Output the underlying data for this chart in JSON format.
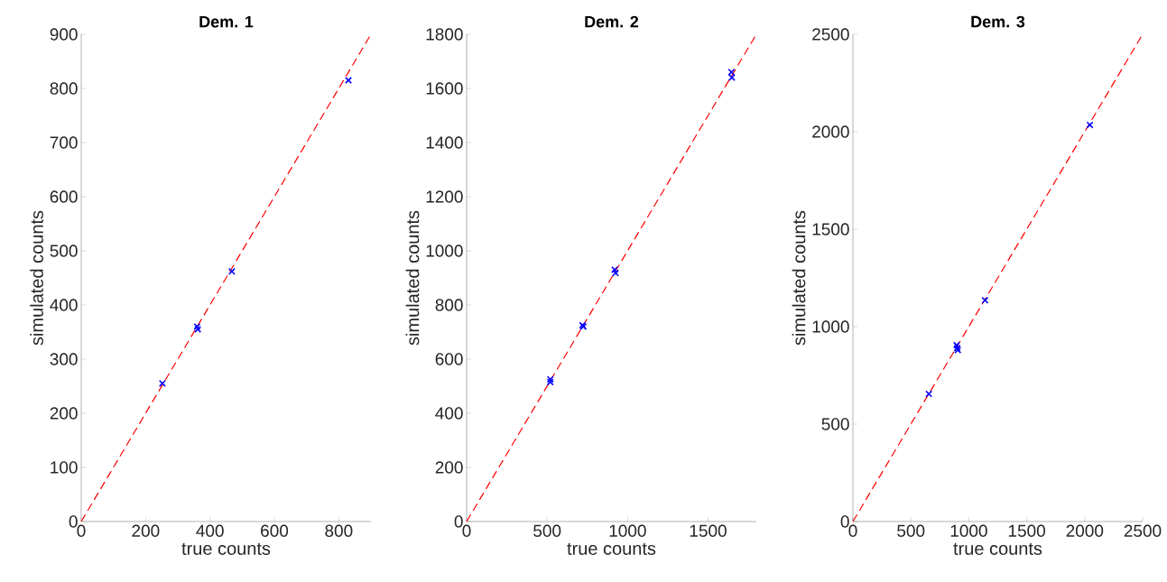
{
  "chart_data": [
    {
      "type": "scatter",
      "title": "Dem. 1",
      "xlabel": "true counts",
      "ylabel": "simulated counts",
      "xlim": [
        0,
        900
      ],
      "ylim": [
        0,
        900
      ],
      "xticks": [
        0,
        200,
        400,
        600,
        800
      ],
      "yticks": [
        0,
        100,
        200,
        300,
        400,
        500,
        600,
        700,
        800,
        900
      ],
      "series": [
        {
          "type": "line",
          "color": "#ff0000",
          "line_style": "dashed",
          "marker": "none",
          "x": [
            0,
            900
          ],
          "values": [
            0,
            900
          ]
        },
        {
          "color": "#0000ff",
          "marker": "cross",
          "x": [
            252,
            360,
            362,
            468,
            826,
            830
          ],
          "values": [
            255,
            360,
            355,
            462,
            null,
            815
          ]
        }
      ]
    },
    {
      "type": "scatter",
      "title": "Dem. 2",
      "xlabel": "true counts",
      "ylabel": "simulated counts",
      "xlim": [
        0,
        1800
      ],
      "ylim": [
        0,
        1800
      ],
      "xticks": [
        0,
        500,
        1000,
        1500
      ],
      "yticks": [
        0,
        200,
        400,
        600,
        800,
        1000,
        1200,
        1400,
        1600,
        1800
      ],
      "series": [
        {
          "type": "line",
          "color": "#ff0000",
          "line_style": "dashed",
          "marker": "none",
          "x": [
            0,
            1800
          ],
          "values": [
            0,
            1800
          ]
        },
        {
          "color": "#0000ff",
          "marker": "cross",
          "x": [
            520,
            520,
            720,
            725,
            920,
            925,
            1645,
            1648
          ],
          "values": [
            525,
            515,
            725,
            720,
            930,
            918,
            1660,
            1640
          ]
        }
      ]
    },
    {
      "type": "scatter",
      "title": "Dem. 3",
      "xlabel": "true counts",
      "ylabel": "simulated counts",
      "xlim": [
        0,
        2500
      ],
      "ylim": [
        0,
        2500
      ],
      "xticks": [
        0,
        500,
        1000,
        1500,
        2000,
        2500
      ],
      "yticks": [
        0,
        500,
        1000,
        1500,
        2000,
        2500
      ],
      "series": [
        {
          "type": "line",
          "color": "#ff0000",
          "line_style": "dashed",
          "marker": "none",
          "x": [
            0,
            2500
          ],
          "values": [
            0,
            2500
          ]
        },
        {
          "color": "#0000ff",
          "marker": "cross",
          "x": [
            655,
            895,
            900,
            905,
            1140,
            2040,
            2045
          ],
          "values": [
            655,
            905,
            890,
            880,
            1135,
            null,
            2035
          ]
        }
      ]
    }
  ]
}
